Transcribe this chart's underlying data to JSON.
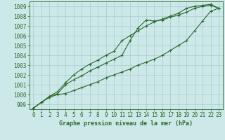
{
  "title": "Graphe pression niveau de la mer (hPa)",
  "bg_color": "#cce8e8",
  "grid_color": "#aacccc",
  "line_color": "#2d6a2d",
  "xmin": -0.5,
  "xmax": 23.5,
  "ymin": 998.5,
  "ymax": 1009.5,
  "yticks": [
    999,
    1000,
    1001,
    1002,
    1003,
    1004,
    1005,
    1006,
    1007,
    1008,
    1009
  ],
  "xticks": [
    0,
    1,
    2,
    3,
    4,
    5,
    6,
    7,
    8,
    9,
    10,
    11,
    12,
    13,
    14,
    15,
    16,
    17,
    18,
    19,
    20,
    21,
    22,
    23
  ],
  "line1_x": [
    0,
    1,
    2,
    3,
    4,
    5,
    6,
    7,
    8,
    9,
    10,
    11,
    12,
    13,
    14,
    15,
    16,
    17,
    18,
    19,
    20,
    21,
    22,
    23
  ],
  "line1_y": [
    998.6,
    999.2,
    999.7,
    1000.0,
    1000.1,
    1000.4,
    1000.7,
    1001.0,
    1001.3,
    1001.7,
    1002.0,
    1002.3,
    1002.6,
    1003.0,
    1003.3,
    1003.6,
    1004.0,
    1004.5,
    1005.0,
    1005.5,
    1006.5,
    1007.5,
    1008.5,
    1008.8
  ],
  "line2_x": [
    0,
    1,
    2,
    3,
    4,
    5,
    6,
    7,
    8,
    9,
    10,
    11,
    12,
    13,
    14,
    15,
    16,
    17,
    18,
    19,
    20,
    21,
    22,
    23
  ],
  "line2_y": [
    998.6,
    999.2,
    999.8,
    1000.1,
    1001.0,
    1001.5,
    1001.9,
    1002.4,
    1002.8,
    1003.2,
    1003.6,
    1004.0,
    1005.5,
    1006.8,
    1007.6,
    1007.5,
    1007.6,
    1007.9,
    1008.1,
    1008.4,
    1008.8,
    1009.0,
    1009.1,
    1008.8
  ],
  "line3_x": [
    0,
    1,
    2,
    3,
    4,
    5,
    6,
    7,
    8,
    9,
    10,
    11,
    12,
    13,
    14,
    15,
    16,
    17,
    18,
    19,
    20,
    21,
    22,
    23
  ],
  "line3_y": [
    998.6,
    999.2,
    999.8,
    1000.3,
    1001.2,
    1002.0,
    1002.6,
    1003.1,
    1003.5,
    1004.0,
    1004.4,
    1005.5,
    1006.0,
    1006.5,
    1007.0,
    1007.4,
    1007.7,
    1008.0,
    1008.3,
    1008.8,
    1009.0,
    1009.1,
    1009.2,
    1008.8
  ],
  "tick_fontsize": 5.5,
  "xlabel_fontsize": 6.0
}
